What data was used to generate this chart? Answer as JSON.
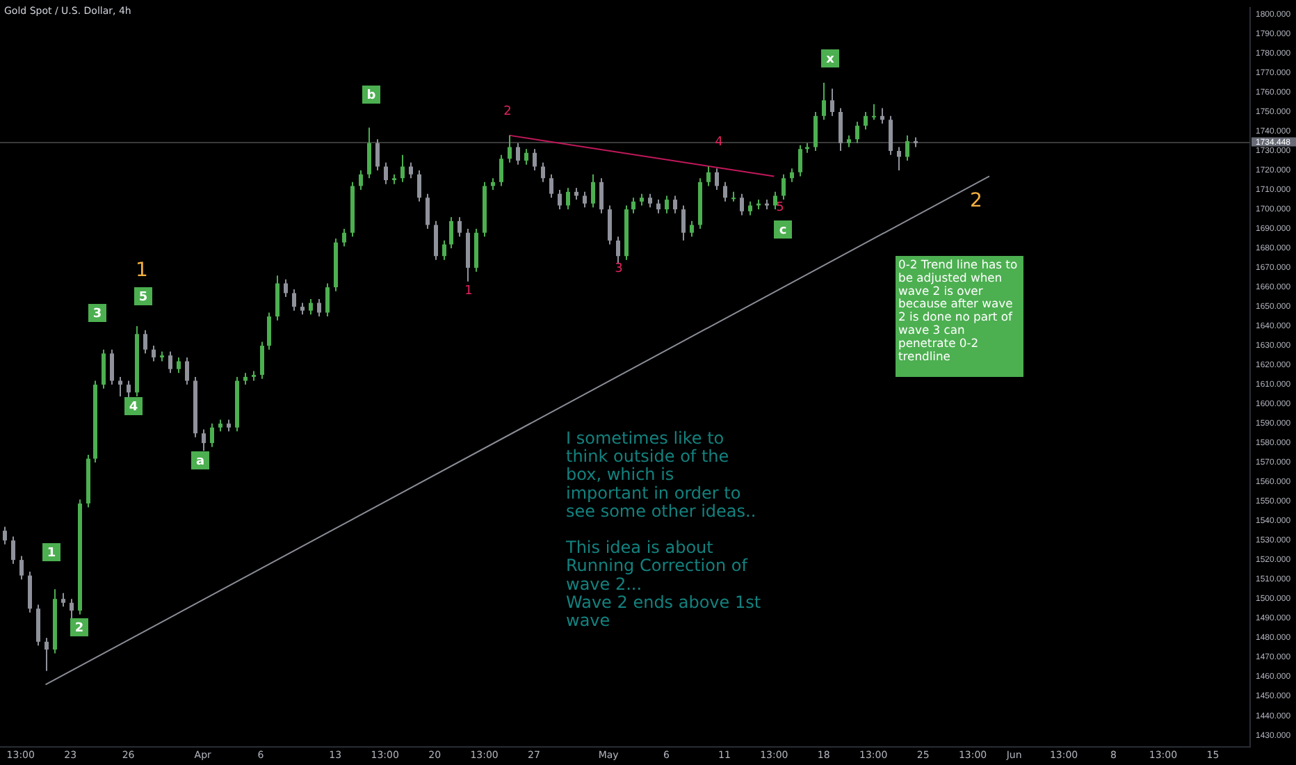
{
  "chart_data": {
    "type": "candlestick",
    "title": "Gold Spot / U.S. Dollar, 4h",
    "categories": [
      null,
      null,
      "13:00",
      null,
      null,
      null,
      null,
      null,
      "23",
      null,
      null,
      null,
      null,
      null,
      null,
      "26",
      null,
      null,
      null,
      null,
      null,
      null,
      null,
      null,
      "Apr",
      null,
      null,
      null,
      null,
      null,
      null,
      "6",
      null,
      null,
      null,
      null,
      null,
      null,
      null,
      null,
      "13",
      null,
      null,
      null,
      null,
      null,
      "13:00",
      null,
      null,
      null,
      null,
      null,
      "20",
      null,
      null,
      null,
      null,
      null,
      "13:00",
      null,
      null,
      null,
      null,
      null,
      "27",
      null,
      null,
      null,
      null,
      null,
      null,
      null,
      null,
      "May",
      null,
      null,
      null,
      null,
      null,
      null,
      "6",
      null,
      null,
      null,
      null,
      null,
      null,
      "11",
      null,
      null,
      null,
      null,
      null,
      "13:00",
      null,
      null,
      null,
      null,
      null,
      "18",
      null,
      null,
      null,
      null,
      null,
      "13:00",
      null,
      null,
      null,
      null,
      null,
      "25",
      null,
      null,
      null,
      null,
      null,
      "13:00",
      null,
      null,
      null,
      null,
      "Jun",
      null,
      null,
      null,
      null,
      null,
      "13:00",
      null,
      null,
      null,
      null,
      null,
      "8",
      null,
      null,
      null,
      null,
      null,
      "13:00",
      null,
      null,
      null,
      null,
      null,
      "15",
      null,
      null,
      null,
      null
    ],
    "ohlc": [
      [
        1535,
        1537,
        1528,
        1530
      ],
      [
        1530,
        1532,
        1518,
        1520
      ],
      [
        1520,
        1522,
        1510,
        1512
      ],
      [
        1512,
        1514,
        1493,
        1495
      ],
      [
        1495,
        1497,
        1476,
        1478
      ],
      [
        1478,
        1480,
        1463,
        1474
      ],
      [
        1474,
        1505,
        1472,
        1500
      ],
      [
        1500,
        1503,
        1496,
        1498
      ],
      [
        1498,
        1500,
        1490,
        1494
      ],
      [
        1494,
        1551,
        1492,
        1549
      ],
      [
        1549,
        1574,
        1547,
        1572
      ],
      [
        1572,
        1612,
        1570,
        1610
      ],
      [
        1610,
        1628,
        1608,
        1626
      ],
      [
        1626,
        1628,
        1610,
        1612
      ],
      [
        1612,
        1614,
        1604,
        1610
      ],
      [
        1610,
        1612,
        1603,
        1606
      ],
      [
        1606,
        1640,
        1604,
        1636
      ],
      [
        1636,
        1638,
        1626,
        1628
      ],
      [
        1628,
        1630,
        1622,
        1624
      ],
      [
        1624,
        1627,
        1622,
        1625
      ],
      [
        1625,
        1627,
        1616,
        1618
      ],
      [
        1618,
        1624,
        1616,
        1622
      ],
      [
        1622,
        1624,
        1610,
        1612
      ],
      [
        1612,
        1614,
        1583,
        1585
      ],
      [
        1585,
        1587,
        1576,
        1580
      ],
      [
        1580,
        1590,
        1578,
        1588
      ],
      [
        1588,
        1592,
        1586,
        1590
      ],
      [
        1590,
        1592,
        1586,
        1588
      ],
      [
        1588,
        1614,
        1586,
        1612
      ],
      [
        1612,
        1616,
        1610,
        1614
      ],
      [
        1614,
        1617,
        1612,
        1615
      ],
      [
        1615,
        1632,
        1613,
        1630
      ],
      [
        1630,
        1647,
        1628,
        1645
      ],
      [
        1645,
        1666,
        1643,
        1662
      ],
      [
        1662,
        1664,
        1655,
        1657
      ],
      [
        1657,
        1659,
        1648,
        1650
      ],
      [
        1650,
        1652,
        1646,
        1648
      ],
      [
        1648,
        1654,
        1646,
        1652
      ],
      [
        1652,
        1654,
        1645,
        1647
      ],
      [
        1647,
        1662,
        1645,
        1660
      ],
      [
        1660,
        1685,
        1658,
        1683
      ],
      [
        1683,
        1690,
        1681,
        1688
      ],
      [
        1688,
        1714,
        1686,
        1712
      ],
      [
        1712,
        1720,
        1710,
        1718
      ],
      [
        1718,
        1742,
        1716,
        1734
      ],
      [
        1734,
        1736,
        1720,
        1722
      ],
      [
        1722,
        1724,
        1713,
        1715
      ],
      [
        1715,
        1718,
        1713,
        1716
      ],
      [
        1716,
        1728,
        1714,
        1722
      ],
      [
        1722,
        1724,
        1716,
        1718
      ],
      [
        1718,
        1720,
        1704,
        1706
      ],
      [
        1706,
        1708,
        1690,
        1692
      ],
      [
        1692,
        1694,
        1674,
        1676
      ],
      [
        1676,
        1684,
        1674,
        1682
      ],
      [
        1682,
        1696,
        1680,
        1694
      ],
      [
        1694,
        1696,
        1686,
        1688
      ],
      [
        1688,
        1690,
        1663,
        1670
      ],
      [
        1670,
        1690,
        1668,
        1688
      ],
      [
        1688,
        1714,
        1686,
        1712
      ],
      [
        1712,
        1716,
        1710,
        1714
      ],
      [
        1714,
        1728,
        1712,
        1726
      ],
      [
        1726,
        1738,
        1724,
        1732
      ],
      [
        1732,
        1734,
        1723,
        1725
      ],
      [
        1725,
        1731,
        1723,
        1729
      ],
      [
        1729,
        1731,
        1720,
        1722
      ],
      [
        1722,
        1724,
        1714,
        1716
      ],
      [
        1716,
        1718,
        1706,
        1708
      ],
      [
        1708,
        1710,
        1700,
        1702
      ],
      [
        1702,
        1711,
        1700,
        1709
      ],
      [
        1709,
        1711,
        1705,
        1707
      ],
      [
        1707,
        1709,
        1701,
        1703
      ],
      [
        1703,
        1718,
        1701,
        1714
      ],
      [
        1714,
        1716,
        1698,
        1700
      ],
      [
        1700,
        1702,
        1682,
        1684
      ],
      [
        1684,
        1686,
        1672,
        1676
      ],
      [
        1676,
        1702,
        1674,
        1700
      ],
      [
        1700,
        1706,
        1698,
        1704
      ],
      [
        1704,
        1708,
        1702,
        1706
      ],
      [
        1706,
        1708,
        1701,
        1703
      ],
      [
        1703,
        1705,
        1698,
        1700
      ],
      [
        1700,
        1707,
        1698,
        1705
      ],
      [
        1705,
        1707,
        1698,
        1700
      ],
      [
        1700,
        1702,
        1684,
        1688
      ],
      [
        1688,
        1694,
        1686,
        1692
      ],
      [
        1692,
        1716,
        1690,
        1714
      ],
      [
        1714,
        1722,
        1712,
        1719
      ],
      [
        1719,
        1721,
        1710,
        1712
      ],
      [
        1712,
        1714,
        1704,
        1706
      ],
      [
        1706,
        1709,
        1704,
        1706
      ],
      [
        1706,
        1708,
        1697,
        1699
      ],
      [
        1699,
        1704,
        1697,
        1702
      ],
      [
        1702,
        1705,
        1700,
        1703
      ],
      [
        1703,
        1705,
        1700,
        1702
      ],
      [
        1702,
        1709,
        1700,
        1707
      ],
      [
        1707,
        1718,
        1705,
        1716
      ],
      [
        1716,
        1721,
        1714,
        1719
      ],
      [
        1719,
        1733,
        1717,
        1731
      ],
      [
        1731,
        1734,
        1729,
        1732
      ],
      [
        1732,
        1750,
        1730,
        1748
      ],
      [
        1748,
        1765,
        1746,
        1756
      ],
      [
        1756,
        1762,
        1748,
        1750
      ],
      [
        1750,
        1752,
        1730,
        1734
      ],
      [
        1734,
        1738,
        1732,
        1736
      ],
      [
        1736,
        1745,
        1734,
        1743
      ],
      [
        1743,
        1750,
        1741,
        1748
      ],
      [
        1748,
        1754,
        1746,
        1748
      ],
      [
        1748,
        1752,
        1744,
        1746
      ],
      [
        1746,
        1748,
        1728,
        1730
      ],
      [
        1730,
        1732,
        1720,
        1727
      ],
      [
        1727,
        1738,
        1725,
        1735
      ],
      [
        1735,
        1737,
        1732,
        1734
      ],
      null,
      null,
      null,
      null,
      null,
      null,
      null,
      null,
      null,
      null,
      null,
      null,
      null,
      null,
      null,
      null,
      null,
      null,
      null,
      null,
      null,
      null,
      null,
      null,
      null,
      null,
      null,
      null,
      null,
      null,
      null,
      null,
      null,
      null,
      null,
      null,
      null,
      null,
      null,
      null
    ],
    "series": [
      {
        "type": "line",
        "color": "#8a8d96",
        "values": [
          null,
          null,
          null,
          null,
          null,
          1456,
          null,
          null,
          null,
          null,
          null,
          null,
          null,
          null,
          null,
          null,
          null,
          null,
          null,
          null,
          null,
          null,
          null,
          null,
          null,
          null,
          null,
          null,
          null,
          null,
          null,
          null,
          null,
          null,
          null,
          null,
          null,
          null,
          null,
          null,
          null,
          null,
          null,
          null,
          null,
          null,
          null,
          null,
          null,
          null,
          null,
          null,
          null,
          null,
          null,
          null,
          null,
          null,
          null,
          null,
          null,
          null,
          null,
          null,
          null,
          null,
          null,
          null,
          null,
          null,
          null,
          null,
          null,
          null,
          null,
          null,
          null,
          null,
          null,
          null,
          null,
          null,
          null,
          null,
          null,
          null,
          null,
          null,
          null,
          null,
          null,
          null,
          null,
          null,
          null,
          null,
          null,
          null,
          null,
          null,
          null,
          null,
          null,
          null,
          null,
          null,
          null,
          null,
          null,
          null,
          null,
          null,
          null,
          null,
          null,
          null,
          null,
          null,
          null,
          1717,
          null,
          null,
          null,
          null,
          null,
          null,
          null,
          null,
          null,
          null,
          null,
          null,
          null,
          null,
          null,
          null,
          null,
          null,
          null,
          null,
          null,
          null,
          null,
          null,
          null,
          null,
          null,
          null,
          null,
          null,
          null
        ]
      },
      {
        "type": "line",
        "color": "#c2185b",
        "values": [
          null,
          null,
          null,
          null,
          null,
          null,
          null,
          null,
          null,
          null,
          null,
          null,
          null,
          null,
          null,
          null,
          null,
          null,
          null,
          null,
          null,
          null,
          null,
          null,
          null,
          null,
          null,
          null,
          null,
          null,
          null,
          null,
          null,
          null,
          null,
          null,
          null,
          null,
          null,
          null,
          null,
          null,
          null,
          null,
          null,
          null,
          null,
          null,
          null,
          null,
          null,
          null,
          null,
          null,
          null,
          null,
          null,
          null,
          null,
          null,
          null,
          1738,
          null,
          null,
          null,
          null,
          null,
          null,
          null,
          null,
          null,
          null,
          null,
          null,
          null,
          null,
          null,
          null,
          null,
          null,
          null,
          null,
          null,
          null,
          null,
          null,
          null,
          null,
          null,
          null,
          null,
          null,
          null,
          1717,
          null,
          null,
          null,
          null,
          null,
          null,
          null,
          null,
          null,
          null,
          null,
          null,
          null,
          null,
          null,
          null,
          null,
          null,
          null,
          null,
          null,
          null,
          null,
          null,
          null,
          null,
          null,
          null,
          null,
          null,
          null,
          null,
          null,
          null,
          null,
          null,
          null,
          null,
          null,
          null,
          null,
          null,
          null,
          null,
          null,
          null,
          null,
          null,
          null,
          null,
          null,
          null,
          null,
          null,
          null,
          null,
          null
        ]
      }
    ],
    "ylim": [
      1424,
      1803.5
    ],
    "yticks": [
      {
        "value": 1430,
        "label": "1430.000"
      },
      {
        "value": 1440,
        "label": "1440.000"
      },
      {
        "value": 1450,
        "label": "1450.000"
      },
      {
        "value": 1460,
        "label": "1460.000"
      },
      {
        "value": 1470,
        "label": "1470.000"
      },
      {
        "value": 1480,
        "label": "1480.000"
      },
      {
        "value": 1490,
        "label": "1490.000"
      },
      {
        "value": 1500,
        "label": "1500.000"
      },
      {
        "value": 1510,
        "label": "1510.000"
      },
      {
        "value": 1520,
        "label": "1520.000"
      },
      {
        "value": 1530,
        "label": "1530.000"
      },
      {
        "value": 1540,
        "label": "1540.000"
      },
      {
        "value": 1550,
        "label": "1550.000"
      },
      {
        "value": 1560,
        "label": "1560.000"
      },
      {
        "value": 1570,
        "label": "1570.000"
      },
      {
        "value": 1580,
        "label": "1580.000"
      },
      {
        "value": 1590,
        "label": "1590.000"
      },
      {
        "value": 1600,
        "label": "1600.000"
      },
      {
        "value": 1610,
        "label": "1610.000"
      },
      {
        "value": 1620,
        "label": "1620.000"
      },
      {
        "value": 1630,
        "label": "1630.000"
      },
      {
        "value": 1640,
        "label": "1640.000"
      },
      {
        "value": 1650,
        "label": "1650.000"
      },
      {
        "value": 1660,
        "label": "1660.000"
      },
      {
        "value": 1670,
        "label": "1670.000"
      },
      {
        "value": 1680,
        "label": "1680.000"
      },
      {
        "value": 1690,
        "label": "1690.000"
      },
      {
        "value": 1700,
        "label": "1700.000"
      },
      {
        "value": 1710,
        "label": "1710.000"
      },
      {
        "value": 1720,
        "label": "1720.000"
      },
      {
        "value": 1730,
        "label": "1730.000"
      },
      {
        "value": 1740,
        "label": "1740.000"
      },
      {
        "value": 1750,
        "label": "1750.000"
      },
      {
        "value": 1760,
        "label": "1760.000"
      },
      {
        "value": 1770,
        "label": "1770.000"
      },
      {
        "value": 1780,
        "label": "1780.000"
      },
      {
        "value": 1790,
        "label": "1790.000"
      },
      {
        "value": 1800,
        "label": "1800.000"
      }
    ],
    "ref_lines": [
      {
        "axis": "y",
        "value": 1734.448,
        "label": "1734.448",
        "color": "#3a3a3a"
      }
    ],
    "annotations": [
      "1",
      "2",
      "3",
      "4",
      "5",
      "a",
      "b",
      "c",
      "x",
      "1",
      "2",
      "3",
      "4",
      "5",
      "1",
      "2",
      "I sometimes like to\nthink outside of the\nbox, which is\nimportant in order to\nsee some other ideas..\n\nThis idea is about\nRunning Correction of\nwave 2...\nWave 2 ends above 1st\nwave",
      "0-2 Trend line has to be adjusted when wave 2 is over because after wave 2 is done no part of wave 3 can penetrate 0-2 trendline"
    ]
  }
}
